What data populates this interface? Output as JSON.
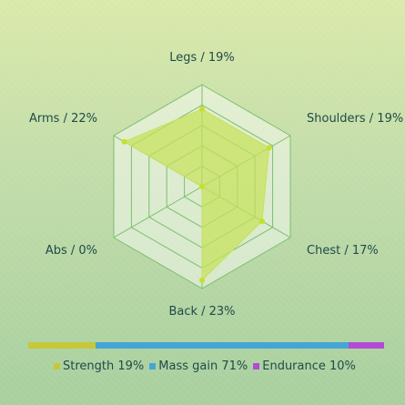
{
  "chart_data": {
    "type": "radar",
    "axes": [
      {
        "label": "Legs / 19%",
        "value": 19
      },
      {
        "label": "Shoulders / 19%",
        "value": 19
      },
      {
        "label": "Chest / 17%",
        "value": 17
      },
      {
        "label": "Back / 23%",
        "value": 23
      },
      {
        "label": "Abs / 0%",
        "value": 0
      },
      {
        "label": "Arms / 22%",
        "value": 22
      }
    ],
    "rmax": 25,
    "grid_rings": 5,
    "fill_color": "#c6e25a",
    "point_color": "#c6e02a",
    "grid_color": "#7cbf6e"
  },
  "breakdown": {
    "items": [
      {
        "label": "Strength 19%",
        "value": 19,
        "color": "#c6c83a"
      },
      {
        "label": "Mass gain 71%",
        "value": 71,
        "color": "#45a5d6"
      },
      {
        "label": "Endurance 10%",
        "value": 10,
        "color": "#b34ad6"
      }
    ]
  }
}
